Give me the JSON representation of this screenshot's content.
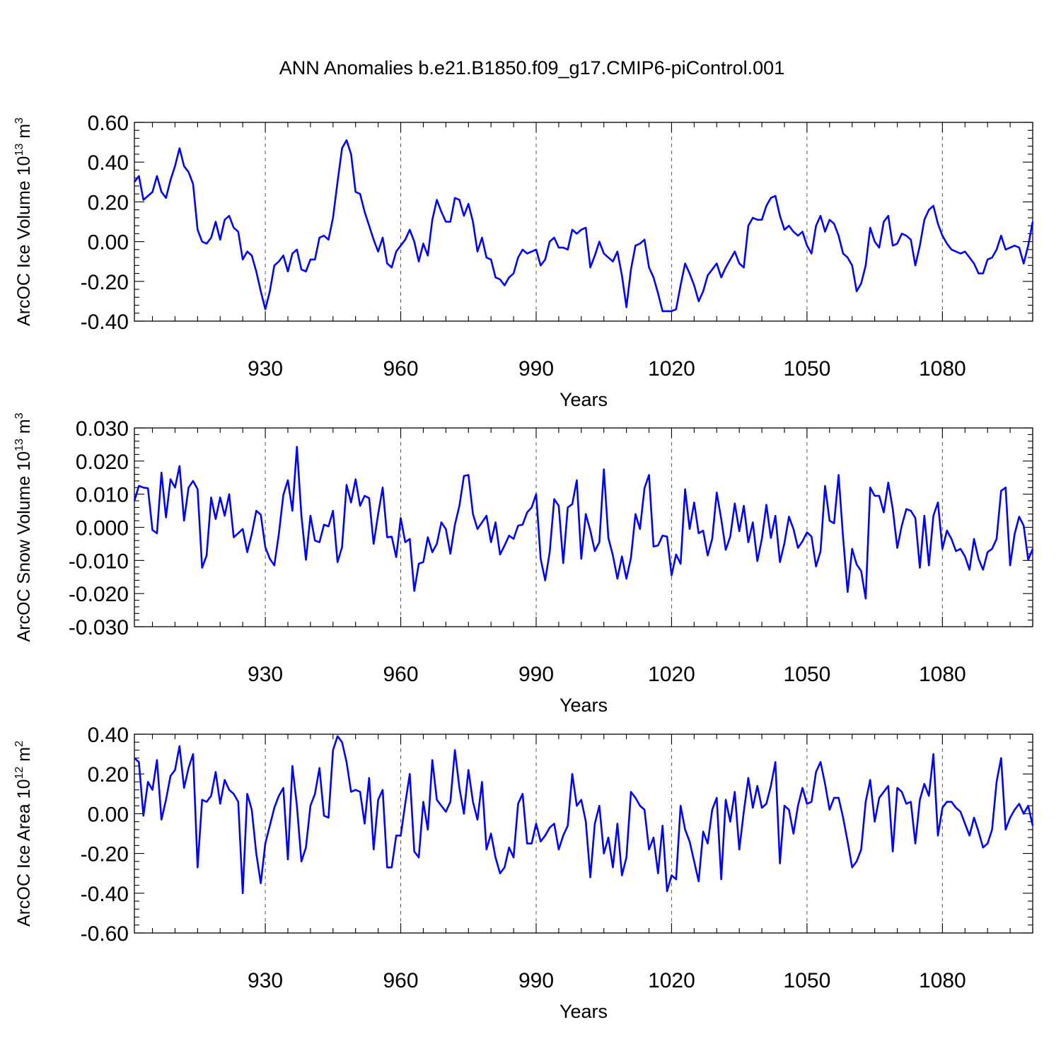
{
  "figure": {
    "title": "ANN Anomalies b.e21.B1850.f09_g17.CMIP6-piControl.001"
  },
  "chart_data": [
    {
      "type": "line",
      "name": "ice-volume",
      "title": "ANN Anomalies b.e21.B1850.f09_g17.CMIP6-piControl.001",
      "xlabel": "Years",
      "ylabel_main": "ArcOC Ice Volume 10",
      "ylabel_exp": "13",
      "ylabel_unit": "m",
      "ylabel_unit_exp": "3",
      "xlim": [
        901,
        1100
      ],
      "ylim": [
        -0.4,
        0.6
      ],
      "x_ticks": [
        930,
        960,
        990,
        1020,
        1050,
        1080
      ],
      "x_tick_labels": [
        "930",
        "960",
        "990",
        "1020",
        "1050",
        "1080"
      ],
      "y_ticks": [
        -0.4,
        -0.2,
        0.0,
        0.2,
        0.4,
        0.6
      ],
      "y_tick_labels": [
        "-0.40",
        "-0.20",
        "0.00",
        "0.20",
        "0.40",
        "0.60"
      ],
      "grid": "x-dashed",
      "color": "#0000ff",
      "x_start": 901,
      "values": [
        0.3,
        0.33,
        0.21,
        0.23,
        0.25,
        0.33,
        0.25,
        0.22,
        0.31,
        0.38,
        0.47,
        0.38,
        0.35,
        0.29,
        0.06,
        0.0,
        -0.01,
        0.02,
        0.1,
        0.01,
        0.11,
        0.13,
        0.07,
        0.05,
        -0.09,
        -0.05,
        -0.07,
        -0.15,
        -0.25,
        -0.34,
        -0.25,
        -0.12,
        -0.1,
        -0.07,
        -0.15,
        -0.06,
        -0.04,
        -0.14,
        -0.15,
        -0.09,
        -0.09,
        0.02,
        0.03,
        0.01,
        0.12,
        0.3,
        0.47,
        0.51,
        0.44,
        0.25,
        0.24,
        0.15,
        0.08,
        0.01,
        -0.05,
        0.02,
        -0.11,
        -0.13,
        -0.05,
        -0.02,
        0.01,
        0.06,
        0.0,
        -0.1,
        -0.01,
        -0.07,
        0.11,
        0.21,
        0.15,
        0.1,
        0.1,
        0.22,
        0.21,
        0.13,
        0.19,
        0.1,
        -0.05,
        0.02,
        -0.08,
        -0.09,
        -0.18,
        -0.19,
        -0.22,
        -0.18,
        -0.16,
        -0.08,
        -0.04,
        -0.06,
        -0.05,
        -0.04,
        -0.12,
        -0.09,
        0.0,
        0.02,
        -0.03,
        -0.03,
        -0.04,
        0.06,
        0.04,
        0.06,
        0.07,
        -0.13,
        -0.07,
        0.0,
        -0.06,
        -0.08,
        -0.1,
        -0.05,
        -0.17,
        -0.33,
        -0.14,
        -0.02,
        -0.01,
        0.01,
        -0.13,
        -0.18,
        -0.26,
        -0.35,
        -0.35,
        -0.35,
        -0.34,
        -0.22,
        -0.11,
        -0.16,
        -0.22,
        -0.3,
        -0.25,
        -0.17,
        -0.14,
        -0.11,
        -0.18,
        -0.13,
        -0.09,
        -0.05,
        -0.11,
        -0.13,
        0.08,
        0.12,
        0.11,
        0.11,
        0.18,
        0.22,
        0.23,
        0.13,
        0.06,
        0.08,
        0.05,
        0.03,
        0.05,
        -0.02,
        -0.06,
        0.08,
        0.13,
        0.05,
        0.11,
        0.09,
        0.03,
        -0.06,
        -0.08,
        -0.12,
        -0.25,
        -0.21,
        -0.12,
        0.07,
        0.0,
        -0.03,
        0.1,
        0.13,
        -0.02,
        -0.01,
        0.04,
        0.03,
        0.01,
        -0.12,
        -0.02,
        0.11,
        0.16,
        0.18,
        0.09,
        0.03,
        -0.01,
        -0.04,
        -0.05,
        -0.06,
        -0.05,
        -0.08,
        -0.11,
        -0.16,
        -0.16,
        -0.09,
        -0.08,
        -0.04,
        0.03,
        -0.04,
        -0.03,
        -0.02,
        -0.03,
        -0.11,
        -0.02,
        0.1
      ]
    },
    {
      "type": "line",
      "name": "snow-volume",
      "xlabel": "Years",
      "ylabel_main": "ArcOC Snow Volume 10",
      "ylabel_exp": "13",
      "ylabel_unit": "m",
      "ylabel_unit_exp": "3",
      "xlim": [
        901,
        1100
      ],
      "ylim": [
        -0.03,
        0.03
      ],
      "x_ticks": [
        930,
        960,
        990,
        1020,
        1050,
        1080
      ],
      "x_tick_labels": [
        "930",
        "960",
        "990",
        "1020",
        "1050",
        "1080"
      ],
      "y_ticks": [
        -0.03,
        -0.02,
        -0.01,
        0.0,
        0.01,
        0.02,
        0.03
      ],
      "y_tick_labels": [
        "-0.030",
        "-0.020",
        "-0.010",
        "0.000",
        "0.010",
        "0.020",
        "0.030"
      ],
      "grid": "x-dashed",
      "color": "#0000ff",
      "x_start": 901,
      "values": [
        0.008,
        0.0125,
        0.012,
        0.0118,
        -0.0008,
        -0.0018,
        0.0165,
        0.003,
        0.0145,
        0.012,
        0.0185,
        0.002,
        0.012,
        0.014,
        0.0115,
        -0.0122,
        -0.0085,
        0.009,
        0.0025,
        0.009,
        0.0035,
        0.01,
        -0.003,
        -0.0018,
        -0.0005,
        -0.0075,
        -0.002,
        0.005,
        0.0038,
        -0.006,
        -0.0095,
        -0.0115,
        -0.002,
        0.0098,
        0.0142,
        0.005,
        0.0243,
        0.0035,
        -0.0098,
        0.0035,
        -0.004,
        -0.0045,
        0.0008,
        0.0003,
        0.005,
        -0.0105,
        -0.006,
        0.0128,
        0.0075,
        0.0145,
        0.0065,
        0.0095,
        0.0088,
        -0.005,
        0.004,
        0.012,
        -0.003,
        -0.0028,
        -0.009,
        0.0028,
        -0.0045,
        -0.0035,
        -0.0192,
        -0.011,
        -0.0105,
        -0.003,
        -0.0075,
        -0.005,
        0.0015,
        -0.0005,
        -0.008,
        0.0008,
        0.0065,
        0.0155,
        0.0158,
        0.004,
        -0.0005,
        0.0015,
        0.0035,
        -0.0045,
        0.0015,
        -0.0082,
        -0.0055,
        -0.0025,
        -0.0035,
        0.0005,
        0.0008,
        0.0045,
        0.006,
        0.01,
        -0.0095,
        -0.016,
        -0.0075,
        0.0085,
        0.0065,
        -0.0108,
        0.006,
        0.007,
        0.0142,
        -0.0095,
        0.004,
        -0.001,
        -0.0072,
        -0.0045,
        0.0175,
        -0.0032,
        -0.0085,
        -0.0155,
        -0.0088,
        -0.0155,
        -0.0092,
        0.004,
        -0.0005,
        0.0118,
        0.0158,
        -0.0058,
        -0.0055,
        -0.0025,
        -0.0028,
        -0.0145,
        -0.0082,
        -0.011,
        0.0115,
        -0.0005,
        0.0075,
        -0.0018,
        -0.001,
        -0.0085,
        -0.0035,
        0.0105,
        0.0025,
        -0.0068,
        -0.0028,
        0.0072,
        -0.0012,
        0.0065,
        -0.0045,
        0.0015,
        -0.0102,
        -0.0035,
        0.0068,
        -0.0032,
        0.0035,
        -0.0105,
        -0.0048,
        0.0032,
        -0.0005,
        -0.0062,
        -0.0042,
        -0.0015,
        -0.0028,
        -0.0118,
        -0.0072,
        0.0125,
        0.002,
        0.0012,
        0.0158,
        -0.0032,
        -0.0195,
        -0.0065,
        -0.0112,
        -0.0132,
        -0.0215,
        0.012,
        0.0095,
        0.0095,
        0.0045,
        0.0135,
        0.0055,
        -0.0062,
        0.0005,
        0.0055,
        0.005,
        0.0028,
        -0.0122,
        0.0035,
        -0.0115,
        0.0035,
        0.0075,
        -0.0065,
        -0.001,
        -0.0035,
        -0.0072,
        -0.0065,
        -0.0088,
        -0.0128,
        -0.0035,
        -0.0095,
        -0.0128,
        -0.0075,
        -0.0065,
        -0.0035,
        0.011,
        0.012,
        -0.0115,
        -0.002,
        0.0032,
        0.0005,
        -0.0098,
        -0.0065
      ]
    },
    {
      "type": "line",
      "name": "ice-area",
      "xlabel": "Years",
      "ylabel_main": "ArcOC Ice Area 10",
      "ylabel_exp": "12",
      "ylabel_unit": "m",
      "ylabel_unit_exp": "2",
      "xlim": [
        901,
        1100
      ],
      "ylim": [
        -0.6,
        0.4
      ],
      "x_ticks": [
        930,
        960,
        990,
        1020,
        1050,
        1080
      ],
      "x_tick_labels": [
        "930",
        "960",
        "990",
        "1020",
        "1050",
        "1080"
      ],
      "y_ticks": [
        -0.6,
        -0.4,
        -0.2,
        0.0,
        0.2,
        0.4
      ],
      "y_tick_labels": [
        "-0.60",
        "-0.40",
        "-0.20",
        "0.00",
        "0.20",
        "0.40"
      ],
      "grid": "x-dashed",
      "color": "#0000ff",
      "x_start": 901,
      "values": [
        0.28,
        0.26,
        -0.01,
        0.16,
        0.12,
        0.27,
        -0.03,
        0.07,
        0.19,
        0.22,
        0.34,
        0.13,
        0.23,
        0.3,
        -0.27,
        0.07,
        0.06,
        0.09,
        0.21,
        0.05,
        0.17,
        0.12,
        0.1,
        0.06,
        -0.4,
        0.1,
        0.02,
        -0.2,
        -0.35,
        -0.15,
        -0.06,
        0.03,
        0.09,
        0.13,
        -0.23,
        0.24,
        0.04,
        -0.24,
        -0.17,
        0.04,
        0.1,
        0.23,
        -0.01,
        -0.02,
        0.32,
        0.39,
        0.36,
        0.26,
        0.11,
        0.12,
        0.11,
        -0.05,
        0.18,
        -0.18,
        0.07,
        0.12,
        -0.27,
        -0.27,
        -0.11,
        -0.11,
        0.05,
        0.2,
        -0.19,
        -0.22,
        0.06,
        -0.08,
        0.27,
        0.07,
        0.04,
        0.01,
        0.06,
        0.32,
        0.13,
        0.0,
        0.22,
        0.06,
        -0.03,
        0.16,
        -0.18,
        -0.1,
        -0.22,
        -0.3,
        -0.27,
        -0.17,
        -0.22,
        0.05,
        0.1,
        -0.15,
        -0.15,
        -0.05,
        -0.14,
        -0.11,
        -0.07,
        -0.05,
        -0.18,
        -0.11,
        -0.06,
        0.2,
        0.04,
        0.07,
        -0.04,
        -0.32,
        -0.05,
        0.04,
        -0.2,
        -0.12,
        -0.27,
        -0.05,
        -0.31,
        -0.22,
        0.11,
        0.08,
        0.04,
        0.02,
        -0.18,
        -0.12,
        -0.3,
        -0.06,
        -0.39,
        -0.31,
        -0.33,
        0.04,
        -0.08,
        -0.14,
        -0.24,
        -0.34,
        -0.09,
        -0.15,
        0.02,
        0.08,
        -0.33,
        0.07,
        -0.04,
        0.11,
        -0.18,
        0.01,
        0.18,
        0.03,
        0.14,
        0.03,
        0.05,
        0.14,
        0.26,
        -0.25,
        0.04,
        0.02,
        -0.1,
        0.04,
        0.13,
        0.05,
        0.06,
        0.21,
        0.26,
        0.15,
        0.02,
        0.08,
        0.08,
        -0.02,
        -0.14,
        -0.27,
        -0.24,
        -0.18,
        0.06,
        0.17,
        -0.04,
        0.08,
        0.11,
        0.14,
        -0.19,
        0.13,
        0.11,
        0.05,
        0.06,
        -0.15,
        0.07,
        0.15,
        0.09,
        0.3,
        -0.11,
        0.03,
        0.06,
        0.06,
        0.03,
        0.01,
        -0.05,
        -0.11,
        -0.02,
        -0.09,
        -0.17,
        -0.15,
        -0.08,
        0.16,
        0.28,
        -0.08,
        -0.02,
        0.02,
        0.05,
        0.0,
        0.04,
        -0.06
      ]
    }
  ]
}
